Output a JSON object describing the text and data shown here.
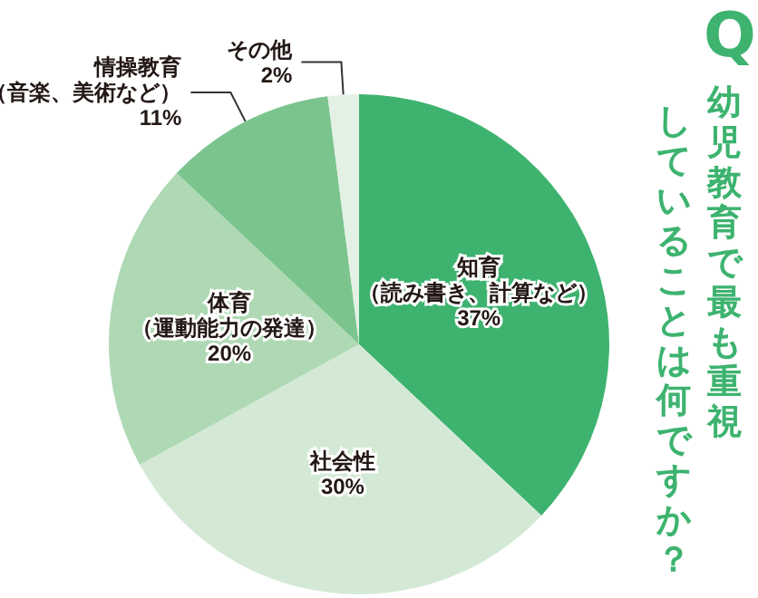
{
  "chart_data": {
    "type": "pie",
    "title": "幼児教育で最も重視していることは何ですか？",
    "annotations": [
      "Q"
    ],
    "categories": [
      "知育（読み書き、計算など）",
      "社会性",
      "体育（運動能力の発達）",
      "情操教育（音楽、美術など）",
      "その他"
    ],
    "values": [
      37,
      30,
      20,
      11,
      2
    ],
    "value_labels": [
      "37%",
      "30%",
      "20%",
      "11%",
      "2%"
    ],
    "colors": [
      "#3db36f",
      "#d3e9d5",
      "#aed9b4",
      "#7cc48e",
      "#e3f1e5"
    ],
    "legend": false
  }
}
